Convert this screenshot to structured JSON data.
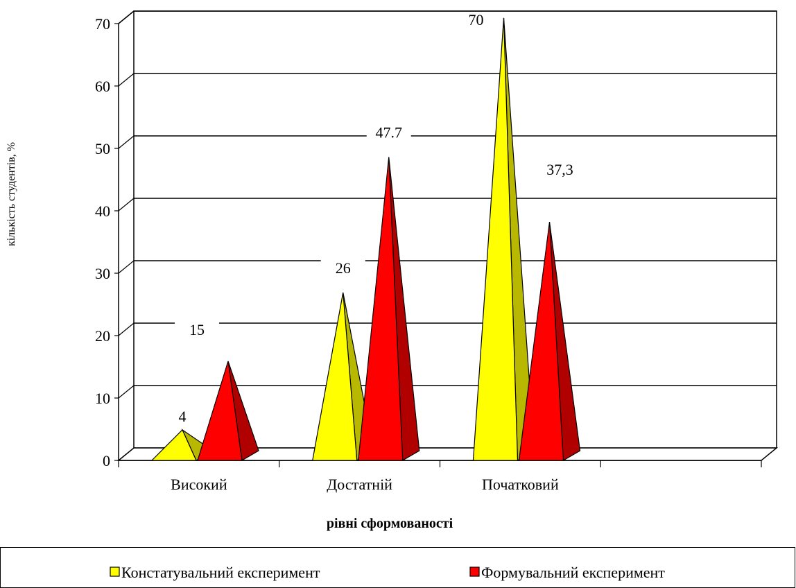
{
  "chart_data": {
    "type": "bar",
    "style": "3d-pyramid",
    "categories": [
      "Високий",
      "Достатній",
      "Початковий",
      ""
    ],
    "series": [
      {
        "name": "Констатувальний експеримент",
        "values": [
          4,
          26,
          70,
          null
        ],
        "labels": [
          "4",
          "26",
          "70",
          ""
        ]
      },
      {
        "name": "Формувальний експеримент",
        "values": [
          15,
          47.7,
          37.3,
          null
        ],
        "labels": [
          "15",
          "47.7",
          "37,3",
          ""
        ]
      }
    ],
    "xlabel": "рівні сформованості",
    "ylabel": "кількість студентів, %",
    "ylim": [
      0,
      70
    ],
    "yticks": [
      0,
      10,
      20,
      30,
      40,
      50,
      60,
      70
    ],
    "grid": true,
    "legend_position": "bottom",
    "colors": {
      "series1_front": "#ffff00",
      "series1_side": "#b8b800",
      "series2_front": "#ff0000",
      "series2_side": "#b00000",
      "grid": "#000000",
      "wall": "#ffffff"
    }
  }
}
